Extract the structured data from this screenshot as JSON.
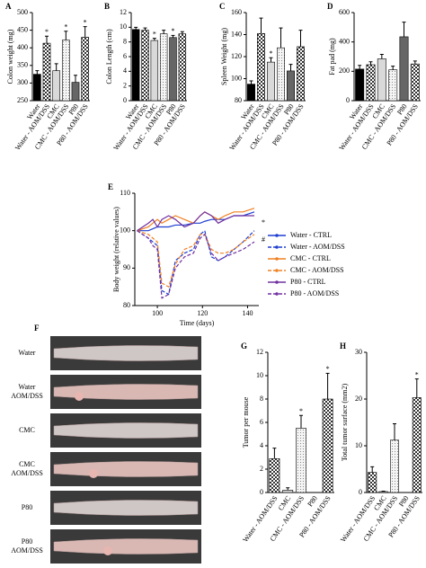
{
  "chart_data": [
    {
      "type": "bar",
      "panel": "A",
      "y_label": "Colon weight (mg)",
      "categories": [
        "Water",
        "Water - AOM/DSS",
        "CMC",
        "CMC - AOM/DSS",
        "P80",
        "P80 - AOM/DSS"
      ],
      "values": [
        325,
        413,
        335,
        422,
        302,
        430
      ],
      "errors": [
        10,
        20,
        20,
        25,
        20,
        30
      ],
      "markers": [
        null,
        "*",
        null,
        "*",
        null,
        "*"
      ],
      "fills": [
        "#000000",
        "crosshatch",
        "#d9d9d9",
        "dotted",
        "#666666",
        "crosshatch"
      ],
      "ylim": [
        250,
        500
      ],
      "yticks": [
        250,
        300,
        350,
        400,
        450,
        500
      ]
    },
    {
      "type": "bar",
      "panel": "B",
      "y_label": "Colon Length (cm)",
      "categories": [
        "Water",
        "Water - AOM/DSS",
        "CMC",
        "CMC - AOM/DSS",
        "P80",
        "P80 - AOM/DSS"
      ],
      "values": [
        9.7,
        9.6,
        8.2,
        9.1,
        8.6,
        9.1
      ],
      "errors": [
        0.3,
        0.3,
        0.3,
        0.5,
        0.3,
        0.3
      ],
      "markers": [
        null,
        null,
        "*",
        null,
        "*",
        null
      ],
      "fills": [
        "#000000",
        "crosshatch",
        "#d9d9d9",
        "dotted",
        "#666666",
        "crosshatch"
      ],
      "ylim": [
        0,
        12
      ],
      "yticks": [
        0,
        2,
        4,
        6,
        8,
        10,
        12
      ]
    },
    {
      "type": "bar",
      "panel": "C",
      "y_label": "Spleen Weight (mg)",
      "categories": [
        "Water",
        "Water - AOM/DSS",
        "CMC",
        "CMC - AOM/DSS",
        "P80",
        "P80 - AOM/DSS"
      ],
      "values": [
        95,
        141,
        115,
        128,
        107,
        129
      ],
      "errors": [
        3,
        14,
        4,
        18,
        6,
        15
      ],
      "markers": [
        null,
        null,
        "*",
        null,
        null,
        null
      ],
      "fills": [
        "#000000",
        "crosshatch",
        "#d9d9d9",
        "dotted",
        "#666666",
        "crosshatch"
      ],
      "ylim": [
        80,
        160
      ],
      "yticks": [
        80,
        100,
        120,
        140,
        160
      ]
    },
    {
      "type": "bar",
      "panel": "D",
      "y_label": "Fat pad (mg)",
      "categories": [
        "Water",
        "Water - AOM/DSS",
        "CMC",
        "CMC - AOM/DSS",
        "P80",
        "P80 - AOM/DSS"
      ],
      "values": [
        215,
        245,
        285,
        210,
        435,
        250
      ],
      "errors": [
        25,
        20,
        30,
        25,
        100,
        20
      ],
      "markers": [
        null,
        null,
        null,
        null,
        null,
        null
      ],
      "fills": [
        "#000000",
        "crosshatch",
        "#d9d9d9",
        "dotted",
        "#666666",
        "crosshatch"
      ],
      "ylim": [
        0,
        600
      ],
      "yticks": [
        0,
        200,
        400,
        600
      ]
    },
    {
      "type": "line",
      "panel": "E",
      "x_label": "Time (days)",
      "y_label": "Body weight (relative values)",
      "x": [
        91,
        96,
        98,
        100,
        102,
        105,
        108,
        112,
        116,
        119,
        121,
        124,
        127,
        130,
        134,
        138,
        143
      ],
      "series": [
        {
          "name": "Water - CTRL",
          "color": "#1f3fd0",
          "dashed": false,
          "values": [
            100,
            100,
            100.5,
            101,
            101,
            101,
            101.5,
            101.5,
            102,
            102,
            102.5,
            103,
            103,
            103,
            104,
            104,
            105
          ]
        },
        {
          "name": "Water - AOM/DSS",
          "color": "#1f3fd0",
          "dashed": true,
          "values": [
            100,
            98,
            97,
            96,
            84,
            83,
            92,
            94,
            95,
            99,
            100,
            93,
            92,
            93,
            95,
            97,
            100
          ]
        },
        {
          "name": "CMC - CTRL",
          "color": "#f08020",
          "dashed": false,
          "values": [
            100,
            101,
            102,
            103,
            102,
            103,
            104,
            103,
            102,
            104,
            105,
            104,
            103,
            104,
            105,
            105,
            106
          ]
        },
        {
          "name": "CMC - AOM/DSS",
          "color": "#f08020",
          "dashed": true,
          "values": [
            100,
            99,
            98,
            97,
            86,
            85,
            91,
            95,
            96,
            99,
            99,
            95,
            94,
            94,
            95,
            97,
            99
          ]
        },
        {
          "name": "P80 - CTRL",
          "color": "#7030a0",
          "dashed": false,
          "values": [
            100,
            102,
            103,
            101,
            103,
            104,
            103,
            101,
            102,
            104,
            105,
            104,
            102,
            103,
            104,
            104,
            104
          ]
        },
        {
          "name": "P80 - AOM/DSS",
          "color": "#7030a0",
          "dashed": true,
          "values": [
            100,
            98,
            96,
            95,
            82,
            83,
            90,
            93,
            94,
            98,
            99,
            94,
            92,
            93,
            94,
            95,
            97
          ]
        }
      ],
      "annotations": [
        "*",
        "#"
      ],
      "xlim": [
        90,
        145
      ],
      "xticks": [
        100,
        120,
        140
      ],
      "ylim": [
        80,
        110
      ],
      "yticks": [
        80,
        90,
        100,
        110
      ]
    },
    {
      "type": "bar",
      "panel": "G",
      "y_label": "Tumor per mouse",
      "categories": [
        "Water - AOM/DSS",
        "CMC",
        "CMC - AOM/DSS",
        "P80",
        "P80 - AOM/DSS"
      ],
      "values": [
        2.9,
        0.2,
        5.5,
        0,
        8
      ],
      "errors": [
        0.9,
        0.2,
        1.1,
        0,
        2.2
      ],
      "markers": [
        null,
        null,
        "*",
        null,
        "*"
      ],
      "fills": [
        "crosshatch",
        "#d9d9d9",
        "dotted",
        "#666666",
        "crosshatch"
      ],
      "ylim": [
        0,
        12
      ],
      "yticks": [
        0,
        2,
        4,
        6,
        8,
        10,
        12
      ]
    },
    {
      "type": "bar",
      "panel": "H",
      "y_label": "Total tumor surface (mm2)",
      "categories": [
        "Water - AOM/DSS",
        "CMC",
        "CMC - AOM/DSS",
        "P80",
        "P80 - AOM/DSS"
      ],
      "values": [
        4.3,
        0.2,
        11.2,
        0,
        20.3
      ],
      "errors": [
        1.2,
        0.1,
        3.5,
        0,
        4
      ],
      "markers": [
        null,
        null,
        null,
        null,
        "*"
      ],
      "fills": [
        "crosshatch",
        "#d9d9d9",
        "dotted",
        "#666666",
        "crosshatch"
      ],
      "ylim": [
        0,
        30
      ],
      "yticks": [
        0,
        10,
        20,
        30
      ]
    }
  ],
  "photo_panel": {
    "panel": "F",
    "labels": [
      "Water",
      "Water AOM/DSS",
      "CMC",
      "CMC AOM/DSS",
      "P80",
      "P80 AOM/DSS"
    ]
  }
}
